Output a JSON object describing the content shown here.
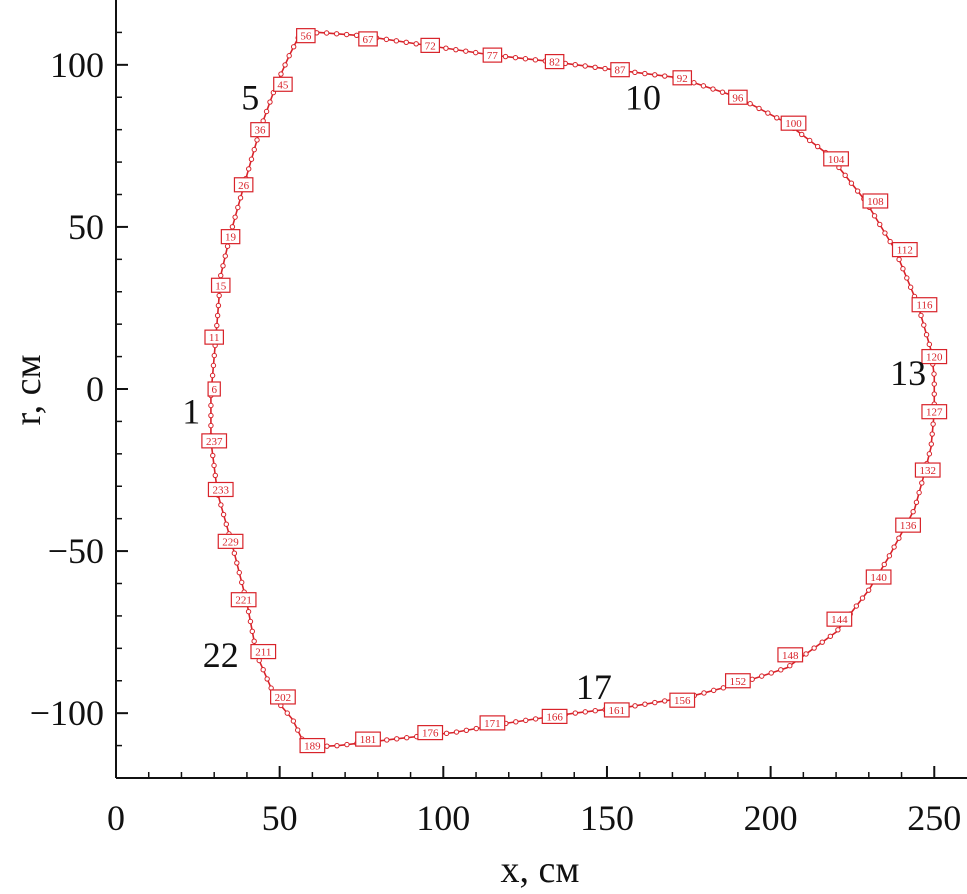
{
  "chart_data": {
    "type": "line",
    "xlabel": "x, см",
    "ylabel": "r, см",
    "xlim": [
      0,
      260
    ],
    "ylim": [
      -120,
      120
    ],
    "xticks": [
      0,
      50,
      100,
      150,
      200,
      250
    ],
    "xtick_labels": [
      "0",
      "50",
      "100",
      "150",
      "200",
      "250"
    ],
    "yticks": [
      -100,
      -50,
      0,
      50,
      100
    ],
    "ytick_labels": [
      "−100",
      "−50",
      "0",
      "50",
      "100"
    ],
    "grid": false,
    "color": "#d8232a",
    "series": [
      {
        "points": [
          [
            29,
            -2
          ],
          [
            30,
            10
          ],
          [
            31,
            22
          ],
          [
            32,
            35
          ],
          [
            35,
            48
          ],
          [
            40,
            66
          ],
          [
            44,
            80
          ],
          [
            49,
            94
          ],
          [
            53,
            103
          ],
          [
            56,
            109
          ],
          [
            62,
            110
          ],
          [
            75,
            109
          ],
          [
            95,
            106
          ],
          [
            115,
            103
          ],
          [
            133,
            101
          ],
          [
            152,
            98.5
          ],
          [
            172,
            96
          ],
          [
            190,
            90
          ],
          [
            205,
            82
          ],
          [
            218,
            72
          ],
          [
            229,
            58
          ],
          [
            238,
            43
          ],
          [
            245,
            26
          ],
          [
            249,
            12
          ],
          [
            250,
            4
          ],
          [
            250,
            -7
          ],
          [
            249,
            -18
          ],
          [
            247,
            -26
          ],
          [
            244,
            -37
          ],
          [
            236,
            -52
          ],
          [
            230,
            -62
          ],
          [
            220,
            -75
          ],
          [
            205,
            -86
          ],
          [
            190,
            -91
          ],
          [
            175,
            -95
          ],
          [
            157,
            -98
          ],
          [
            140,
            -100
          ],
          [
            120,
            -103
          ],
          [
            103,
            -106
          ],
          [
            85,
            -108
          ],
          [
            68,
            -110
          ],
          [
            58,
            -110.5
          ],
          [
            54,
            -102
          ],
          [
            49,
            -96
          ],
          [
            43,
            -82
          ],
          [
            40,
            -66
          ],
          [
            36,
            -50
          ],
          [
            31,
            -32
          ],
          [
            29,
            -16
          ],
          [
            29,
            -2
          ]
        ],
        "node_count": 237
      }
    ],
    "point_labels": [
      {
        "label": "6",
        "x": 30,
        "y": 0
      },
      {
        "label": "11",
        "x": 30,
        "y": 16
      },
      {
        "label": "15",
        "x": 32,
        "y": 32
      },
      {
        "label": "19",
        "x": 35,
        "y": 47
      },
      {
        "label": "26",
        "x": 39,
        "y": 63
      },
      {
        "label": "36",
        "x": 44,
        "y": 80
      },
      {
        "label": "45",
        "x": 51,
        "y": 94
      },
      {
        "label": "56",
        "x": 58,
        "y": 109
      },
      {
        "label": "67",
        "x": 77,
        "y": 108
      },
      {
        "label": "72",
        "x": 96,
        "y": 106
      },
      {
        "label": "77",
        "x": 115,
        "y": 103
      },
      {
        "label": "82",
        "x": 134,
        "y": 101
      },
      {
        "label": "87",
        "x": 154,
        "y": 98.5
      },
      {
        "label": "92",
        "x": 173,
        "y": 96
      },
      {
        "label": "96",
        "x": 190,
        "y": 90
      },
      {
        "label": "100",
        "x": 207,
        "y": 82
      },
      {
        "label": "104",
        "x": 220,
        "y": 71
      },
      {
        "label": "108",
        "x": 232,
        "y": 58
      },
      {
        "label": "112",
        "x": 241,
        "y": 43
      },
      {
        "label": "116",
        "x": 247,
        "y": 26
      },
      {
        "label": "120",
        "x": 250,
        "y": 10
      },
      {
        "label": "127",
        "x": 250,
        "y": -7
      },
      {
        "label": "132",
        "x": 248,
        "y": -25
      },
      {
        "label": "136",
        "x": 242,
        "y": -42
      },
      {
        "label": "140",
        "x": 233,
        "y": -58
      },
      {
        "label": "144",
        "x": 221,
        "y": -71
      },
      {
        "label": "148",
        "x": 206,
        "y": -82
      },
      {
        "label": "152",
        "x": 190,
        "y": -90
      },
      {
        "label": "156",
        "x": 173,
        "y": -96
      },
      {
        "label": "161",
        "x": 153,
        "y": -99
      },
      {
        "label": "166",
        "x": 134,
        "y": -101
      },
      {
        "label": "171",
        "x": 115,
        "y": -103
      },
      {
        "label": "176",
        "x": 96,
        "y": -106
      },
      {
        "label": "181",
        "x": 77,
        "y": -108
      },
      {
        "label": "189",
        "x": 60,
        "y": -110
      },
      {
        "label": "202",
        "x": 51,
        "y": -95
      },
      {
        "label": "211",
        "x": 45,
        "y": -81
      },
      {
        "label": "221",
        "x": 39,
        "y": -65
      },
      {
        "label": "229",
        "x": 35,
        "y": -47
      },
      {
        "label": "233",
        "x": 32,
        "y": -31
      },
      {
        "label": "237",
        "x": 30,
        "y": -16
      }
    ],
    "annotations": [
      {
        "text": "1",
        "x": 23,
        "y": -7
      },
      {
        "text": "5",
        "x": 41,
        "y": 90
      },
      {
        "text": "10",
        "x": 161,
        "y": 90
      },
      {
        "text": "13",
        "x": 242,
        "y": 5
      },
      {
        "text": "17",
        "x": 146,
        "y": -92
      },
      {
        "text": "22",
        "x": 32,
        "y": -82
      }
    ]
  }
}
